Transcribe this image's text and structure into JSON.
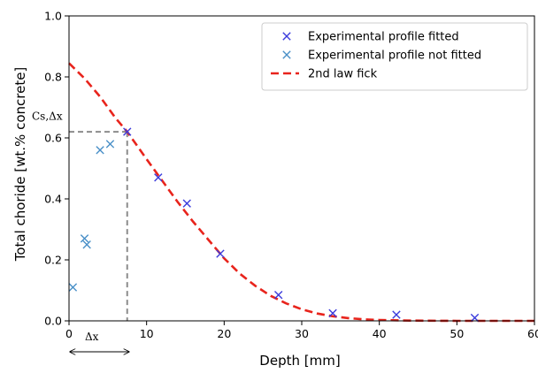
{
  "chart_data": {
    "type": "scatter",
    "xlabel": "Depth [mm]",
    "ylabel": "Total choride [wt.% concrete]",
    "xlim": [
      0,
      60
    ],
    "ylim": [
      0,
      1.0
    ],
    "x_ticks": [
      {
        "value": 0,
        "label": "0"
      },
      {
        "value": 10,
        "label": "10"
      },
      {
        "value": 20,
        "label": "20"
      },
      {
        "value": 30,
        "label": "30"
      },
      {
        "value": 40,
        "label": "40"
      },
      {
        "value": 50,
        "label": "50"
      },
      {
        "value": 60,
        "label": "60"
      }
    ],
    "y_ticks": [
      {
        "value": 0,
        "label": "0.0"
      },
      {
        "value": 0.2,
        "label": "0.2"
      },
      {
        "value": 0.4,
        "label": "0.4"
      },
      {
        "value": 0.6,
        "label": "0.6"
      },
      {
        "value": 0.8,
        "label": "0.8"
      },
      {
        "value": 1.0,
        "label": "1.0"
      }
    ],
    "grid": false,
    "legend_position": "top-right",
    "series": [
      {
        "name": "Experimental profile fitted",
        "kind": "marker-x",
        "color": "#3b3bdc",
        "points": [
          {
            "x": 7.5,
            "y": 0.62
          },
          {
            "x": 11.5,
            "y": 0.47
          },
          {
            "x": 15.2,
            "y": 0.385
          },
          {
            "x": 19.5,
            "y": 0.22
          },
          {
            "x": 27.0,
            "y": 0.085
          },
          {
            "x": 34.0,
            "y": 0.025
          },
          {
            "x": 42.2,
            "y": 0.02
          },
          {
            "x": 52.3,
            "y": 0.01
          }
        ]
      },
      {
        "name": "Experimental profile not fitted",
        "kind": "marker-x",
        "color": "#4a90c8",
        "points": [
          {
            "x": 0.5,
            "y": 0.11
          },
          {
            "x": 2.0,
            "y": 0.27
          },
          {
            "x": 2.3,
            "y": 0.25
          },
          {
            "x": 4.0,
            "y": 0.56
          },
          {
            "x": 5.3,
            "y": 0.58
          }
        ]
      },
      {
        "name": "2nd law fick",
        "kind": "dashed-line",
        "color": "#e8241c",
        "points": [
          {
            "x": 0,
            "y": 0.845
          },
          {
            "x": 2,
            "y": 0.795
          },
          {
            "x": 4,
            "y": 0.735
          },
          {
            "x": 6,
            "y": 0.665
          },
          {
            "x": 7.5,
            "y": 0.62
          },
          {
            "x": 10,
            "y": 0.53
          },
          {
            "x": 12,
            "y": 0.46
          },
          {
            "x": 14,
            "y": 0.39
          },
          {
            "x": 16,
            "y": 0.325
          },
          {
            "x": 18,
            "y": 0.265
          },
          {
            "x": 20,
            "y": 0.205
          },
          {
            "x": 22,
            "y": 0.155
          },
          {
            "x": 24,
            "y": 0.115
          },
          {
            "x": 26,
            "y": 0.082
          },
          {
            "x": 28,
            "y": 0.057
          },
          {
            "x": 30,
            "y": 0.038
          },
          {
            "x": 32,
            "y": 0.024
          },
          {
            "x": 34,
            "y": 0.015
          },
          {
            "x": 36,
            "y": 0.009
          },
          {
            "x": 38,
            "y": 0.005
          },
          {
            "x": 40,
            "y": 0.003
          },
          {
            "x": 44,
            "y": 0.001
          },
          {
            "x": 50,
            "y": 0.0
          },
          {
            "x": 60,
            "y": 0.0
          }
        ]
      }
    ],
    "annotations": {
      "cs_label": "Cs,Δx",
      "dx_label": "Δx",
      "reference_point": {
        "x": 7.5,
        "y": 0.62
      },
      "reference_line_color": "#8c8c8c"
    }
  }
}
